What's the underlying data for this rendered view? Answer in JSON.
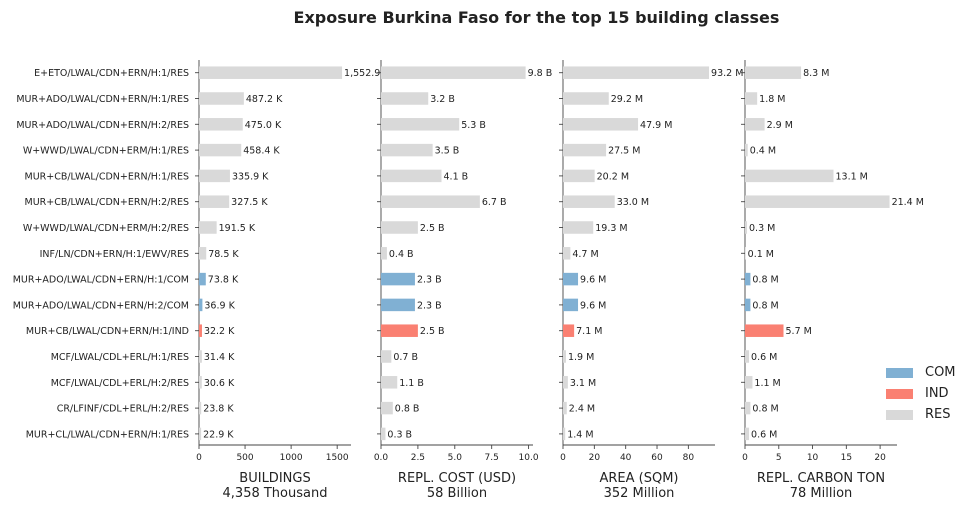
{
  "chart_data": {
    "type": "bar",
    "title": "Exposure Burkina Faso for the top 15 building classes",
    "categories": [
      "E+ETO/LWAL/CDN+ERN/H:1/RES",
      "MUR+ADO/LWAL/CDN+ERN/H:1/RES",
      "MUR+ADO/LWAL/CDN+ERN/H:2/RES",
      "W+WWD/LWAL/CDN+ERM/H:1/RES",
      "MUR+CB/LWAL/CDN+ERN/H:1/RES",
      "MUR+CB/LWAL/CDN+ERN/H:2/RES",
      "W+WWD/LWAL/CDN+ERM/H:2/RES",
      "INF/LN/CDN+ERN/H:1/EWV/RES",
      "MUR+ADO/LWAL/CDN+ERN/H:1/COM",
      "MUR+ADO/LWAL/CDN+ERN/H:2/COM",
      "MUR+CB/LWAL/CDN+ERN/H:1/IND",
      "MCF/LWAL/CDL+ERL/H:1/RES",
      "MCF/LWAL/CDL+ERL/H:2/RES",
      "CR/LFINF/CDL+ERL/H:2/RES",
      "MUR+CL/LWAL/CDN+ERN/H:1/RES"
    ],
    "occupancy": [
      "RES",
      "RES",
      "RES",
      "RES",
      "RES",
      "RES",
      "RES",
      "RES",
      "COM",
      "COM",
      "IND",
      "RES",
      "RES",
      "RES",
      "RES"
    ],
    "colors": {
      "COM": "#80b0d3",
      "IND": "#fa8072",
      "RES": "#d9d9d9"
    },
    "legend": {
      "position": "right",
      "entries": [
        "COM",
        "IND",
        "RES"
      ]
    },
    "panels": [
      {
        "xlabel": "BUILDINGS",
        "total": "4,358 Thousand",
        "xlim": [
          0,
          1650
        ],
        "xticks": [
          0,
          500,
          1000,
          1500
        ],
        "xtick_labels": [
          "0",
          "500",
          "1000",
          "1500"
        ],
        "values": [
          1552.9,
          487.2,
          475.0,
          458.4,
          335.9,
          327.5,
          191.5,
          78.5,
          73.8,
          36.9,
          32.2,
          31.4,
          30.6,
          23.8,
          22.9
        ],
        "labels": [
          "1,552.9",
          "487.2 K",
          "475.0 K",
          "458.4 K",
          "335.9 K",
          "327.5 K",
          "191.5 K",
          "78.5 K",
          "73.8 K",
          "36.9 K",
          "32.2 K",
          "31.4 K",
          "30.6 K",
          "23.8 K",
          "22.9 K"
        ]
      },
      {
        "xlabel": "REPL. COST (USD)",
        "total": "58 Billion",
        "xlim": [
          0,
          10.3
        ],
        "xticks": [
          0,
          2.5,
          5,
          7.5,
          10
        ],
        "xtick_labels": [
          "0.0",
          "2.5",
          "5.0",
          "7.5",
          "10.0"
        ],
        "values": [
          9.8,
          3.2,
          5.3,
          3.5,
          4.1,
          6.7,
          2.5,
          0.4,
          2.3,
          2.3,
          2.5,
          0.7,
          1.1,
          0.8,
          0.3
        ],
        "labels": [
          "9.8 B",
          "3.2 B",
          "5.3 B",
          "3.5 B",
          "4.1 B",
          "6.7 B",
          "2.5 B",
          "0.4 B",
          "2.3 B",
          "2.3 B",
          "2.5 B",
          "0.7 B",
          "1.1 B",
          "0.8 B",
          "0.3 B"
        ]
      },
      {
        "xlabel": "AREA (SQM)",
        "total": "352 Million",
        "xlim": [
          0,
          97
        ],
        "xticks": [
          0,
          20,
          40,
          60,
          80
        ],
        "xtick_labels": [
          "0",
          "20",
          "40",
          "60",
          "80"
        ],
        "values": [
          93.2,
          29.2,
          47.9,
          27.5,
          20.2,
          33.0,
          19.3,
          4.7,
          9.6,
          9.6,
          7.1,
          1.9,
          3.1,
          2.4,
          1.4
        ],
        "labels": [
          "93.2 M",
          "29.2 M",
          "47.9 M",
          "27.5 M",
          "20.2 M",
          "33.0 M",
          "19.3 M",
          "4.7 M",
          "9.6 M",
          "9.6 M",
          "7.1 M",
          "1.9 M",
          "3.1 M",
          "2.4 M",
          "1.4 M"
        ]
      },
      {
        "xlabel": "REPL. CARBON TON",
        "total": "78 Million",
        "xlim": [
          0,
          22.5
        ],
        "xticks": [
          0,
          5,
          10,
          15,
          20
        ],
        "xtick_labels": [
          "0",
          "5",
          "10",
          "15",
          "20"
        ],
        "values": [
          8.3,
          1.8,
          2.9,
          0.4,
          13.1,
          21.4,
          0.3,
          0.1,
          0.8,
          0.8,
          5.7,
          0.6,
          1.1,
          0.8,
          0.6
        ],
        "labels": [
          "8.3 M",
          "1.8 M",
          "2.9 M",
          "0.4 M",
          "13.1 M",
          "21.4 M",
          "0.3 M",
          "0.1 M",
          "0.8 M",
          "0.8 M",
          "5.7 M",
          "0.6 M",
          "1.1 M",
          "0.8 M",
          "0.6 M"
        ]
      }
    ]
  }
}
